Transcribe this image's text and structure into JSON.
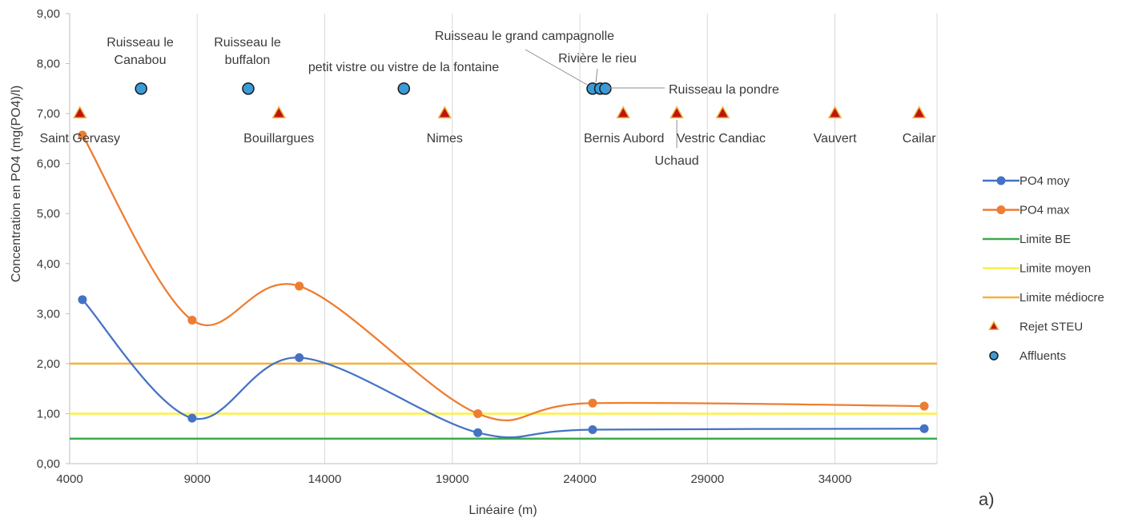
{
  "chart_data": {
    "type": "line",
    "xlabel": "Linéaire (m)",
    "ylabel": "Concentration en PO4  (mg(PO4)/l)",
    "xlim": [
      4000,
      38000
    ],
    "ylim": [
      0,
      9
    ],
    "x_ticks": [
      "4000",
      "9000",
      "14000",
      "19000",
      "24000",
      "29000",
      "34000"
    ],
    "x_tick_values": [
      4000,
      9000,
      14000,
      19000,
      24000,
      29000,
      34000
    ],
    "y_ticks": [
      "0,00",
      "1,00",
      "2,00",
      "3,00",
      "4,00",
      "5,00",
      "6,00",
      "7,00",
      "8,00",
      "9,00"
    ],
    "y_tick_values": [
      0,
      1,
      2,
      3,
      4,
      5,
      6,
      7,
      8,
      9
    ],
    "grid": "vertical",
    "legend_position": "right",
    "panel_label": "a)",
    "series": [
      {
        "name": "PO4 moy",
        "kind": "line",
        "color": "#4472c4",
        "x": [
          4500,
          8800,
          13000,
          20000,
          24500,
          37500
        ],
        "y": [
          3.28,
          0.91,
          2.12,
          0.62,
          0.68,
          0.7
        ]
      },
      {
        "name": "PO4 max",
        "kind": "line",
        "color": "#ed7d31",
        "x": [
          4500,
          8800,
          13000,
          20000,
          24500,
          37500
        ],
        "y": [
          6.57,
          2.87,
          3.55,
          1.0,
          1.21,
          1.15
        ]
      },
      {
        "name": "Limite BE",
        "kind": "hline",
        "color": "#3cab4b",
        "y": 0.5
      },
      {
        "name": "Limite moyen",
        "kind": "hline",
        "color": "#fff03c",
        "y": 1.0
      },
      {
        "name": "Limite médiocre",
        "kind": "hline",
        "color": "#f4b33c",
        "y": 2.0
      }
    ],
    "rejet_steu": {
      "name": "Rejet STEU",
      "fill": "#c0140f",
      "stroke": "#f4b33c",
      "points": [
        {
          "label": "Saint Gervasy",
          "x": 4400,
          "y": 7.0
        },
        {
          "label": "Bouillargues",
          "x": 12200,
          "y": 7.0
        },
        {
          "label": "Nimes",
          "x": 18700,
          "y": 7.0
        },
        {
          "label": "Bernis Aubord",
          "x": 25700,
          "y": 7.0
        },
        {
          "label": "Uchaud",
          "x": 27800,
          "y": 7.0
        },
        {
          "label": "Vestric Candiac",
          "x": 29600,
          "y": 7.0
        },
        {
          "label": "Vauvert",
          "x": 34000,
          "y": 7.0
        },
        {
          "label": "Cailar",
          "x": 37300,
          "y": 7.0
        }
      ]
    },
    "affluents": {
      "name": "Affluents",
      "fill": "#3a9bd9",
      "stroke": "#1a1a1a",
      "points": [
        {
          "label_lines": [
            "Ruisseau le",
            "Canabou"
          ],
          "x": 6800,
          "y": 7.5
        },
        {
          "label_lines": [
            "Ruisseau le",
            "buffalon"
          ],
          "x": 11000,
          "y": 7.5
        },
        {
          "label_lines": [
            "petit vistre ou vistre de la fontaine"
          ],
          "x": 17100,
          "y": 7.5
        },
        {
          "label_lines": [
            "Ruisseau le grand campagnolle"
          ],
          "x": 24500,
          "y": 7.5
        },
        {
          "label_lines": [
            "Rivière le rieu"
          ],
          "x": 24800,
          "y": 7.5
        },
        {
          "label_lines": [
            "Ruisseau la pondre"
          ],
          "x": 25000,
          "y": 7.5
        }
      ]
    }
  }
}
